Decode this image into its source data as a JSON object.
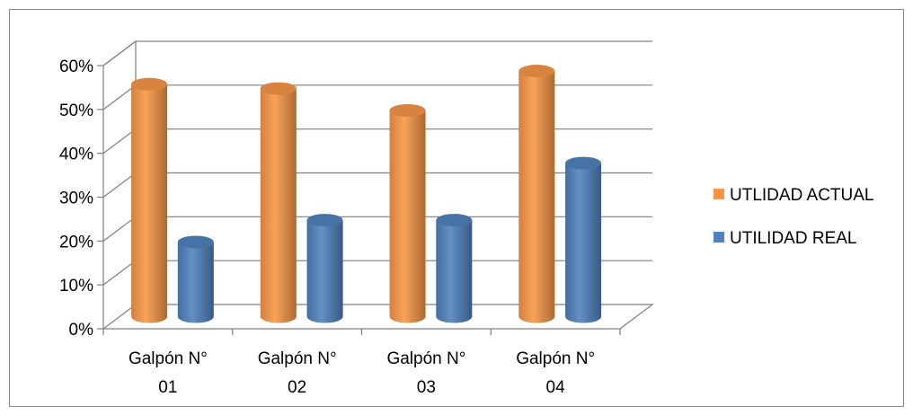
{
  "chart_data": {
    "type": "bar",
    "style": "3d-cylinder",
    "categories": [
      [
        "Galpón N°",
        "01"
      ],
      [
        "Galpón N°",
        "02"
      ],
      [
        "Galpón N°",
        "03"
      ],
      [
        "Galpón N°",
        "04"
      ]
    ],
    "series": [
      {
        "name": "UTLIDAD ACTUAL",
        "color": "#f79646",
        "values": [
          0.53,
          0.52,
          0.47,
          0.56
        ]
      },
      {
        "name": "UTILIDAD REAL",
        "color": "#4f81bd",
        "values": [
          0.17,
          0.22,
          0.22,
          0.35
        ]
      }
    ],
    "yticks": [
      "0%",
      "10%",
      "20%",
      "30%",
      "40%",
      "50%",
      "60%"
    ],
    "ylim": [
      0,
      0.6
    ],
    "title": "",
    "xlabel": "",
    "ylabel": "",
    "grid": true,
    "legend_position": "right"
  }
}
